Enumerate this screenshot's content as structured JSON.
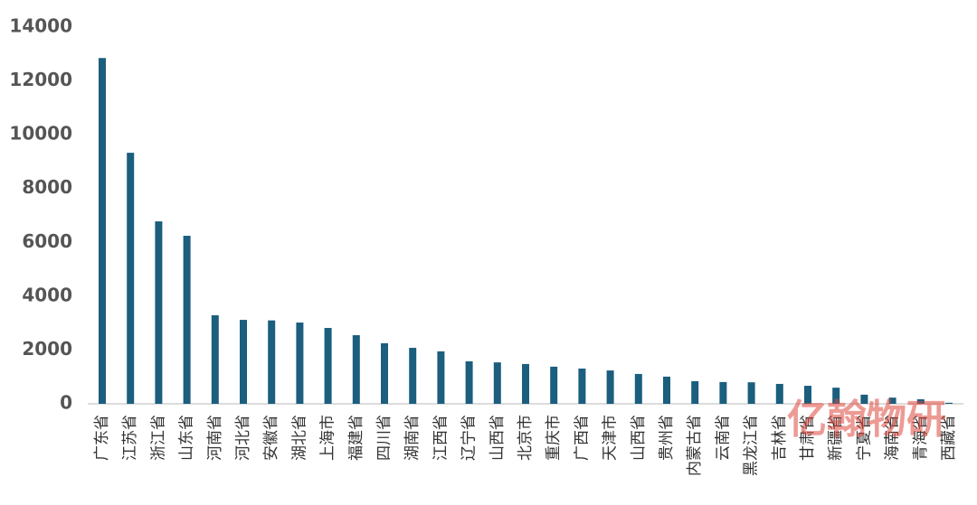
{
  "chart_data": {
    "type": "bar",
    "categories": [
      "广东省",
      "江苏省",
      "浙江省",
      "山东省",
      "河南省",
      "河北省",
      "安徽省",
      "湖北省",
      "上海市",
      "福建省",
      "四川省",
      "湖南省",
      "江西省",
      "辽宁省",
      "山西省",
      "北京市",
      "重庆市",
      "广西省",
      "天津市",
      "山西省",
      "贵州省",
      "内蒙古省",
      "云南省",
      "黑龙江省",
      "吉林省",
      "甘肃省",
      "新疆省",
      "宁夏省",
      "海南省",
      "青海省",
      "西藏省"
    ],
    "values": [
      12850,
      9330,
      6780,
      6245,
      3290,
      3120,
      3100,
      3020,
      2820,
      2550,
      2250,
      2080,
      1950,
      1580,
      1540,
      1480,
      1380,
      1310,
      1240,
      1110,
      1010,
      840,
      810,
      800,
      740,
      670,
      600,
      340,
      230,
      170,
      40
    ],
    "color": "#1b5e7e",
    "ylim": [
      0,
      14000
    ],
    "yticks": [
      0,
      2000,
      4000,
      6000,
      8000,
      10000,
      12000,
      14000
    ],
    "grid": false,
    "watermark": "亿翰物研"
  }
}
